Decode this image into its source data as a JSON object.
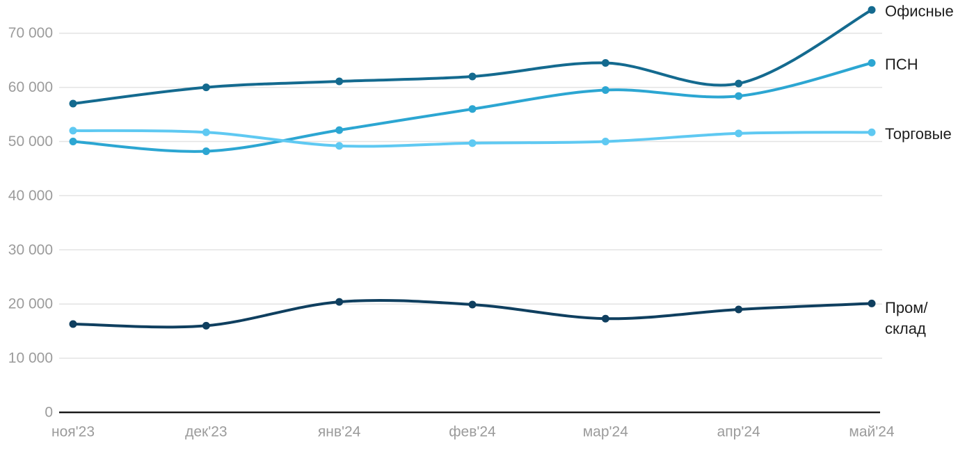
{
  "chart_data": {
    "type": "line",
    "title": "",
    "xlabel": "",
    "ylabel": "",
    "grid": true,
    "legend_position": "right-end-of-lines",
    "categories": [
      "ноя'23",
      "дек'23",
      "янв'24",
      "фев'24",
      "мар'24",
      "апр'24",
      "май'24"
    ],
    "series": [
      {
        "key": "offices",
        "name": "Офисные",
        "label_lines": [
          "Офисные"
        ],
        "color": "#146a8f",
        "values": [
          57000,
          60000,
          61100,
          62000,
          64500,
          60700,
          74300
        ]
      },
      {
        "key": "psn",
        "name": "ПСН",
        "label_lines": [
          "ПСН"
        ],
        "color": "#2ca6d2",
        "values": [
          50000,
          48200,
          52100,
          56000,
          59500,
          58400,
          64500
        ]
      },
      {
        "key": "retail",
        "name": "Торговые",
        "label_lines": [
          "Торговые"
        ],
        "color": "#5fc9f2",
        "values": [
          52000,
          51700,
          49200,
          49700,
          50000,
          51500,
          51700
        ]
      },
      {
        "key": "industrial",
        "name": "Пром/склад",
        "label_lines": [
          "Пром/",
          "склад"
        ],
        "color": "#0f3f5f",
        "values": [
          16300,
          16000,
          20400,
          19900,
          17300,
          19000,
          20100
        ]
      }
    ],
    "y_ticks": [
      0,
      10000,
      20000,
      30000,
      40000,
      50000,
      60000,
      70000
    ],
    "y_tick_labels": [
      "0",
      "10 000",
      "20 000",
      "30 000",
      "40 000",
      "50 000",
      "60 000",
      "70 000"
    ],
    "ylim": [
      0,
      76000
    ]
  },
  "colors": {
    "background": "#ffffff",
    "gridline": "#e3e3e3",
    "axis_line": "#1a1a1a",
    "tick_text": "#9b9b9b",
    "series_label_text": "#1e1e1e"
  }
}
